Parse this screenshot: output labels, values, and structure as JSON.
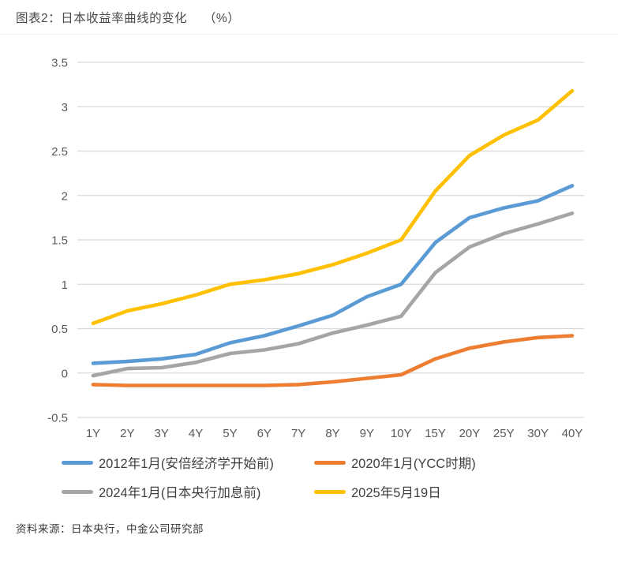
{
  "header": {
    "title": "图表2：日本收益率曲线的变化　 （%）"
  },
  "footer": {
    "source": "资料来源：日本央行，中金公司研究部"
  },
  "colors": {
    "gridline": "#d9d9d9",
    "tick_label": "#595959",
    "legend_text": "#3f3f3f"
  },
  "chart_data": {
    "type": "line",
    "title": "日本收益率曲线的变化 (%)",
    "categories": [
      "1Y",
      "2Y",
      "3Y",
      "4Y",
      "5Y",
      "6Y",
      "7Y",
      "8Y",
      "9Y",
      "10Y",
      "15Y",
      "20Y",
      "25Y",
      "30Y",
      "40Y"
    ],
    "series": [
      {
        "name": "2012年1月(安倍经济学开始前)",
        "color": "#5B9BD5",
        "values": [
          0.11,
          0.13,
          0.16,
          0.21,
          0.34,
          0.42,
          0.53,
          0.65,
          0.86,
          1.0,
          1.47,
          1.75,
          1.86,
          1.94,
          2.11
        ]
      },
      {
        "name": "2020年1月(YCC时期)",
        "color": "#ED7D31",
        "values": [
          -0.13,
          -0.14,
          -0.14,
          -0.14,
          -0.14,
          -0.14,
          -0.13,
          -0.1,
          -0.06,
          -0.02,
          0.16,
          0.28,
          0.35,
          0.4,
          0.42
        ]
      },
      {
        "name": "2024年1月(日本央行加息前)",
        "color": "#A5A5A5",
        "values": [
          -0.03,
          0.05,
          0.06,
          0.12,
          0.22,
          0.26,
          0.33,
          0.45,
          0.54,
          0.64,
          1.13,
          1.42,
          1.57,
          1.68,
          1.8
        ]
      },
      {
        "name": "2025年5月19日",
        "color": "#FFC000",
        "values": [
          0.56,
          0.7,
          0.78,
          0.88,
          1.0,
          1.05,
          1.12,
          1.22,
          1.35,
          1.5,
          2.05,
          2.45,
          2.68,
          2.85,
          3.18
        ]
      }
    ],
    "xlabel": "",
    "ylabel": "",
    "ylim": [
      -0.5,
      3.5
    ],
    "yticks": [
      {
        "value": 3.5,
        "label": "3.5"
      },
      {
        "value": 3,
        "label": "3"
      },
      {
        "value": 2.5,
        "label": "2.5"
      },
      {
        "value": 2,
        "label": "2"
      },
      {
        "value": 1.5,
        "label": "1.5"
      },
      {
        "value": 1,
        "label": "1"
      },
      {
        "value": 0.5,
        "label": "0.5"
      },
      {
        "value": 0,
        "label": "0"
      },
      {
        "value": -0.5,
        "label": "-0.5"
      }
    ],
    "grid": true,
    "legend_position": "bottom"
  }
}
